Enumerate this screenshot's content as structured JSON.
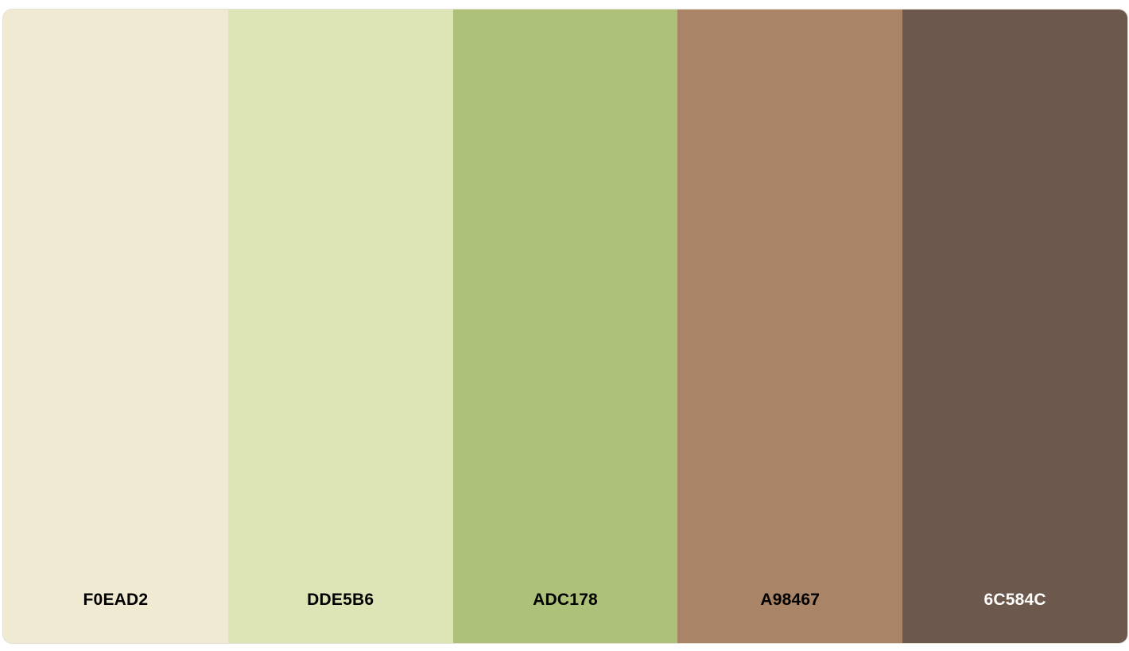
{
  "palette": {
    "swatches": [
      {
        "hex": "F0EAD2",
        "color": "#F0EAD2",
        "label_color": "#000000"
      },
      {
        "hex": "DDE5B6",
        "color": "#DDE5B6",
        "label_color": "#000000"
      },
      {
        "hex": "ADC178",
        "color": "#ADC178",
        "label_color": "#000000"
      },
      {
        "hex": "A98467",
        "color": "#A98467",
        "label_color": "#000000"
      },
      {
        "hex": "6C584C",
        "color": "#6C584C",
        "label_color": "#FFFFFF"
      }
    ]
  }
}
